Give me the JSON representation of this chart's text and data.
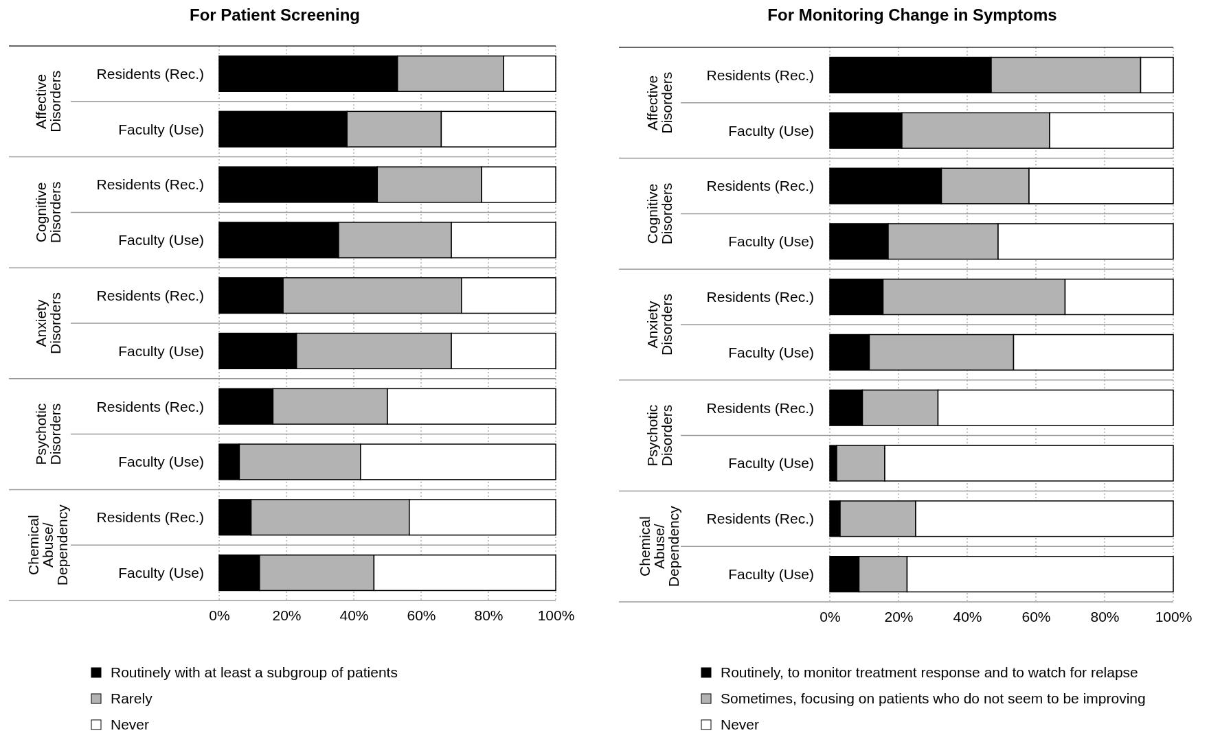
{
  "chart_data": [
    {
      "type": "bar",
      "orientation": "horizontal",
      "stacked": true,
      "title": "For Patient Screening",
      "categories": [
        "Residents (Rec.)",
        "Faculty (Use)",
        "Residents (Rec.)",
        "Faculty (Use)",
        "Residents (Rec.)",
        "Faculty (Use)",
        "Residents (Rec.)",
        "Faculty (Use)",
        "Residents (Rec.)",
        "Faculty (Use)"
      ],
      "annotations": [
        "Affective Disorders",
        "Cognitive Disorders",
        "Anxiety Disorders",
        "Psychotic Disorders",
        "Chemical Abuse/ Dependency"
      ],
      "series": [
        {
          "name": "Routinely with at least a subgroup of patients",
          "color": "#000000",
          "values": [
            53,
            38,
            47,
            35.5,
            19,
            23,
            16,
            6,
            9.5,
            12
          ]
        },
        {
          "name": "Rarely",
          "color": "#b3b3b3",
          "values": [
            31.5,
            28,
            31,
            33.5,
            53,
            46,
            34,
            36,
            47,
            34
          ]
        },
        {
          "name": "Never",
          "color": "#ffffff",
          "values": [
            15.5,
            34,
            22,
            31,
            28,
            31,
            50,
            58,
            43.5,
            54
          ]
        }
      ],
      "xlim": [
        0,
        100
      ],
      "xticks": [
        {
          "value": 0,
          "label": "0%"
        },
        {
          "value": 20,
          "label": "20%"
        },
        {
          "value": 40,
          "label": "40%"
        },
        {
          "value": 60,
          "label": "60%"
        },
        {
          "value": 80,
          "label": "80%"
        },
        {
          "value": 100,
          "label": "100%"
        }
      ],
      "grid": "x",
      "legend": "bottom"
    },
    {
      "type": "bar",
      "orientation": "horizontal",
      "stacked": true,
      "title": "For Monitoring Change in Symptoms",
      "categories": [
        "Residents (Rec.)",
        "Faculty (Use)",
        "Residents (Rec.)",
        "Faculty (Use)",
        "Residents (Rec.)",
        "Faculty (Use)",
        "Residents (Rec.)",
        "Faculty (Use)",
        "Residents (Rec.)",
        "Faculty (Use)"
      ],
      "annotations": [
        "Affective Disorders",
        "Cognitive Disorders",
        "Anxiety Disorders",
        "Psychotic Disorders",
        "Chemical Abuse/ Dependency"
      ],
      "series": [
        {
          "name": "Routinely, to monitor treatment response and to watch for relapse",
          "color": "#000000",
          "values": [
            47,
            21,
            32.5,
            17,
            15.5,
            11.5,
            9.5,
            2,
            3,
            8.5
          ]
        },
        {
          "name": "Sometimes, focusing on patients who do not seem to be improving",
          "color": "#b3b3b3",
          "values": [
            43.5,
            43,
            25.5,
            32,
            53,
            42,
            22,
            14,
            22,
            14
          ]
        },
        {
          "name": "Never",
          "color": "#ffffff",
          "values": [
            9.5,
            36,
            42,
            51,
            31.5,
            46.5,
            68.5,
            84,
            75,
            77.5
          ]
        }
      ],
      "xlim": [
        0,
        100
      ],
      "xticks": [
        {
          "value": 0,
          "label": "0%"
        },
        {
          "value": 20,
          "label": "20%"
        },
        {
          "value": 40,
          "label": "40%"
        },
        {
          "value": 60,
          "label": "60%"
        },
        {
          "value": 80,
          "label": "80%"
        },
        {
          "value": 100,
          "label": "100%"
        }
      ],
      "grid": "x",
      "legend": "bottom"
    }
  ]
}
